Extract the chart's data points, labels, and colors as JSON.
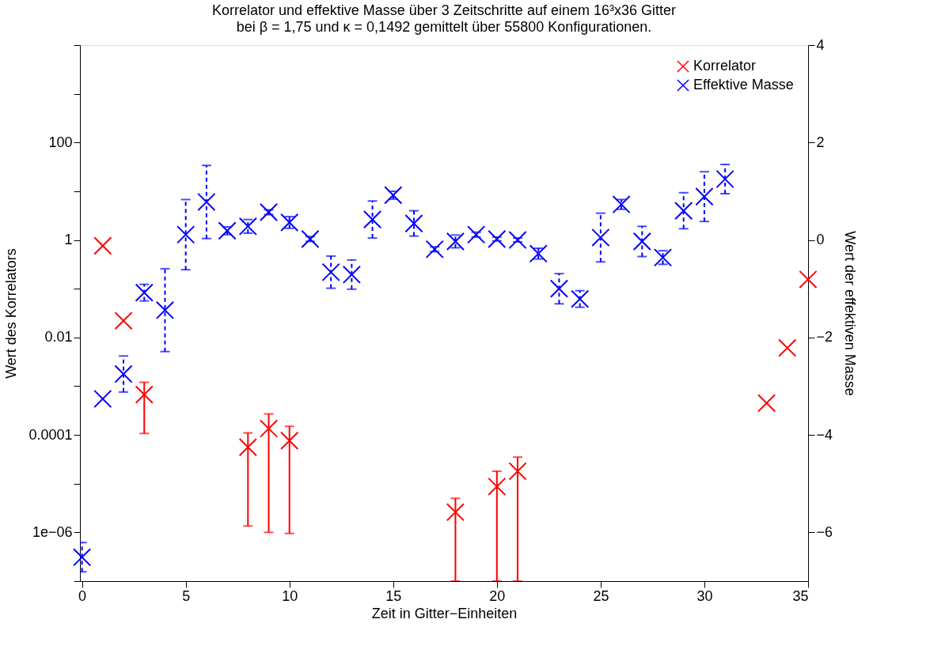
{
  "chart_data": {
    "type": "scatter",
    "title": "Korrelator und effektive Masse über 3 Zeitschritte auf einem 16³x36 Gitter",
    "subtitle": "bei β = 1,75 und κ = 0,1492 gemittelt über 55800 Konfigurationen.",
    "xlabel": "Zeit in Gitter−Einheiten",
    "ylabel": "Wert des Korrelators",
    "y2label": "Wert der effektiven Masse",
    "x": [
      0,
      1,
      2,
      3,
      4,
      5,
      6,
      7,
      8,
      9,
      10,
      11,
      12,
      13,
      14,
      15,
      16,
      17,
      18,
      19,
      20,
      21,
      22,
      23,
      24,
      25,
      26,
      27,
      28,
      29,
      30,
      31,
      32,
      33,
      34,
      35
    ],
    "series": [
      {
        "name": "Korrelator",
        "color": "#ff0000",
        "line_style": "solid",
        "values": [
          null,
          0.76,
          0.022,
          0.00067,
          null,
          null,
          null,
          null,
          5.6e-05,
          0.000135,
          7.6e-05,
          null,
          null,
          null,
          null,
          null,
          null,
          null,
          2.6e-06,
          null,
          8.7e-06,
          1.8e-05,
          null,
          null,
          null,
          null,
          null,
          null,
          null,
          null,
          null,
          null,
          null,
          0.00045,
          0.0061,
          0.155
        ],
        "errors": [
          null,
          null,
          null,
          [
            0.000107,
            0.0012
          ],
          null,
          null,
          null,
          null,
          [
            1.35e-06,
            0.00011
          ],
          [
            1e-06,
            0.00027
          ],
          [
            9.5e-07,
            0.00015
          ],
          null,
          null,
          null,
          null,
          null,
          null,
          null,
          [
            1e-07,
            5e-06
          ],
          null,
          [
            1e-07,
            1.8e-05
          ],
          [
            1e-07,
            3.5e-05
          ],
          null,
          null,
          null,
          null,
          null,
          null,
          null,
          null,
          null,
          null,
          null,
          null,
          null,
          null
        ]
      },
      {
        "name": "Effektive Masse",
        "color": "#0000ff",
        "axis": "y2",
        "line_style": "dashed",
        "values": [
          -6.51,
          -3.26,
          -2.75,
          -1.08,
          -1.44,
          0.11,
          0.78,
          0.19,
          0.28,
          0.57,
          0.36,
          0.02,
          -0.66,
          -0.71,
          0.42,
          0.92,
          0.34,
          -0.19,
          -0.03,
          0.11,
          0.02,
          0.0,
          -0.28,
          -1.0,
          -1.21,
          0.05,
          0.73,
          -0.03,
          -0.36,
          0.6,
          0.89,
          1.25,
          null,
          null,
          null,
          null
        ],
        "errors": [
          0.3,
          null,
          0.37,
          0.17,
          0.85,
          0.72,
          0.75,
          0.08,
          0.14,
          0.05,
          0.12,
          0.05,
          0.33,
          0.3,
          0.38,
          0.08,
          0.26,
          0.05,
          0.13,
          0.05,
          0.04,
          0.04,
          0.11,
          0.31,
          0.17,
          0.5,
          0.1,
          0.31,
          0.14,
          0.37,
          0.51,
          0.3,
          null,
          null,
          null,
          null
        ]
      }
    ],
    "log": "y",
    "marker": "cross",
    "legend": "top right",
    "grid": false,
    "xlim": [
      -0.1,
      35
    ],
    "xticks": [
      0,
      5,
      10,
      15,
      20,
      25,
      30,
      35
    ],
    "ylim": [
      1e-07,
      10000
    ],
    "yticks": [
      {
        "value": 1e-07,
        "label": null
      },
      {
        "value": 1e-06,
        "label": "1e−06"
      },
      {
        "value": 1e-05,
        "label": null
      },
      {
        "value": 0.0001,
        "label": "0.0001"
      },
      {
        "value": 0.001,
        "label": null
      },
      {
        "value": 0.01,
        "label": "0.01"
      },
      {
        "value": 0.1,
        "label": null
      },
      {
        "value": 1,
        "label": "1"
      },
      {
        "value": 10,
        "label": null
      },
      {
        "value": 100,
        "label": "100"
      },
      {
        "value": 1000,
        "label": null
      },
      {
        "value": 10000,
        "label": null
      }
    ],
    "y2lim": [
      -7,
      4
    ],
    "y2ticks": [
      {
        "value": -6,
        "label": "−6"
      },
      {
        "value": -4,
        "label": "−4"
      },
      {
        "value": -2,
        "label": "−2"
      },
      0,
      2,
      4
    ]
  }
}
